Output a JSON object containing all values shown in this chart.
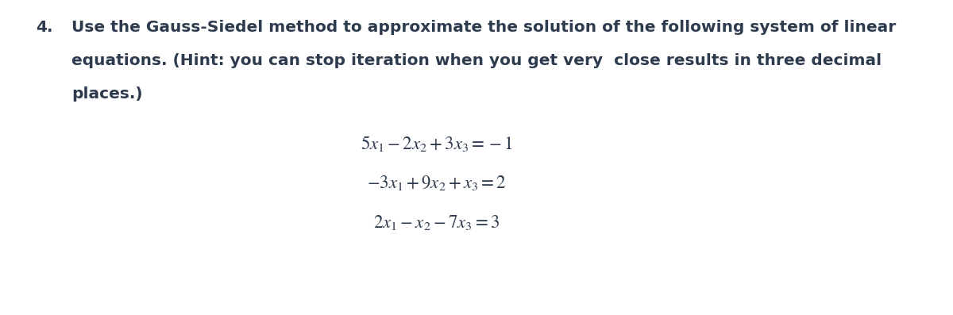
{
  "background_color": "#ffffff",
  "number": "4.",
  "paragraph_line1": "Use the Gauss-Siedel method to approximate the solution of the following system of linear",
  "paragraph_line2": "equations. (Hint: you can stop iteration when you get very  close results in three decimal",
  "paragraph_line3": "places.)",
  "eq1": "$5x_1 - 2x_2 + 3x_3 = -1$",
  "eq2": "$-3x_1 + 9x_2 + x_3 = 2$",
  "eq3": "$2x_1 - x_2 - 7x_3 = 3$",
  "text_color": "#2e3b4e",
  "eq_color": "#2e3b4e",
  "body_fontsize": 14.5,
  "eq_fontsize": 16.5,
  "number_fontsize": 14.5,
  "fig_width": 12.0,
  "fig_height": 3.97,
  "dpi": 100
}
